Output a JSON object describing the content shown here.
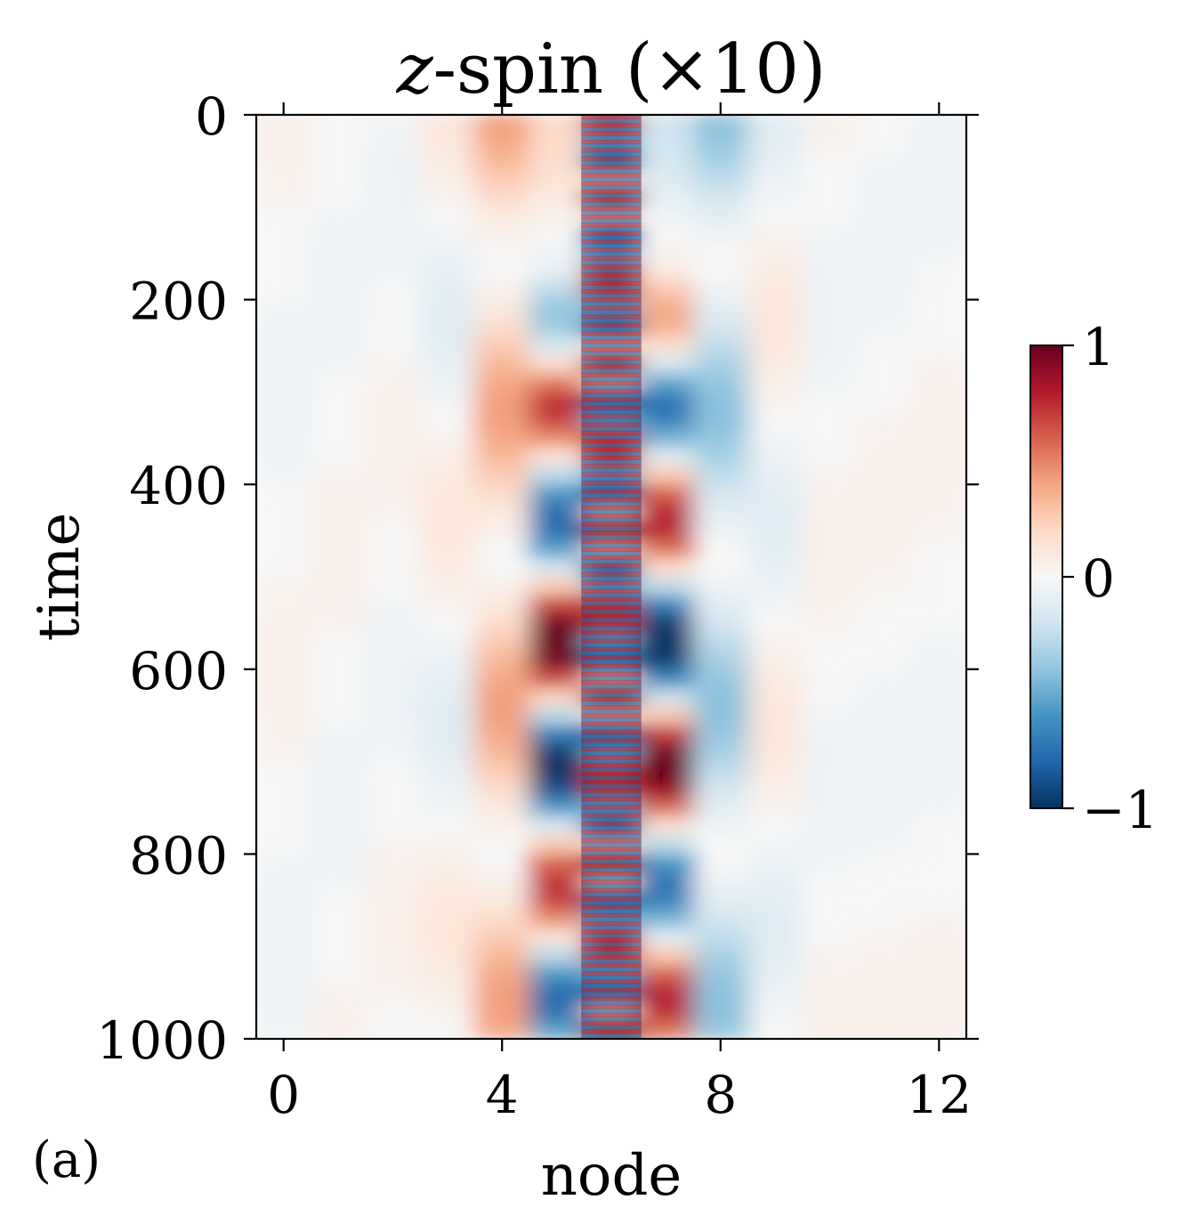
{
  "chart_data": {
    "type": "heatmap",
    "title_var": "z",
    "title_rest": "-spin (×10)",
    "xlabel": "node",
    "ylabel": "time",
    "panel_label": "(a)",
    "x_ticks": [
      "0",
      "4",
      "8",
      "12"
    ],
    "y_ticks": [
      "0",
      "200",
      "400",
      "600",
      "800",
      "1000"
    ],
    "xlim": [
      -0.5,
      12.5
    ],
    "ylim": [
      1000,
      0
    ],
    "nodes": 13,
    "time_range": [
      0,
      1000
    ],
    "colormap": "RdBu_r",
    "colorbar": {
      "ticks": [
        "1",
        "0",
        "−1"
      ],
      "range": [
        -1,
        1
      ]
    },
    "colors": {
      "dark_red": "#67001f",
      "white": "#f7f7f7",
      "dark_blue": "#053061"
    }
  }
}
